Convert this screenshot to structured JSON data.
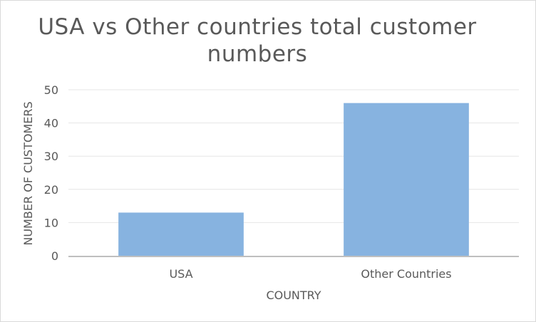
{
  "chart_data": {
    "type": "bar",
    "title": "USA vs Other countries total customer numbers",
    "xlabel": "COUNTRY",
    "ylabel": "NUMBER OF CUSTOMERS",
    "categories": [
      "USA",
      "Other Countries"
    ],
    "values": [
      13,
      46
    ],
    "ylim": [
      0,
      50
    ],
    "yticks": [
      0,
      10,
      20,
      30,
      40,
      50
    ],
    "grid": true,
    "legend": "none",
    "colors": {
      "bar": "#87b3e0",
      "grid": "#e6e6e6",
      "axis": "#bfbfbf",
      "text": "#595959"
    }
  }
}
